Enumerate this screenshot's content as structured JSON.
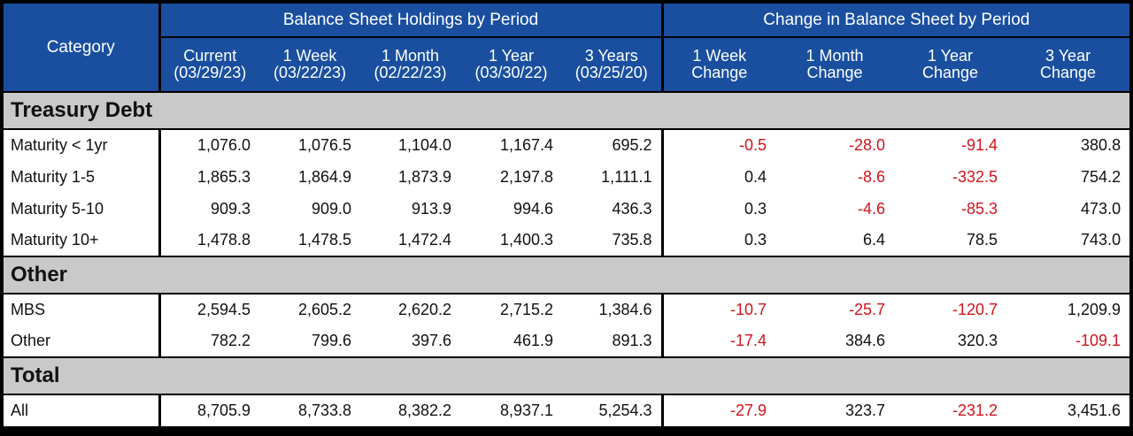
{
  "chart_data": {
    "type": "table",
    "group_headers": [
      "Balance Sheet Holdings by Period",
      "Change in Balance Sheet by Period"
    ],
    "category_header": "Category",
    "columns": [
      [
        "Current",
        "(03/29/23)"
      ],
      [
        "1 Week",
        "(03/22/23)"
      ],
      [
        "1 Month",
        "(02/22/23)"
      ],
      [
        "1 Year",
        "(03/30/22)"
      ],
      [
        "3 Years",
        "(03/25/20)"
      ],
      [
        "1 Week",
        "Change"
      ],
      [
        "1 Month",
        "Change"
      ],
      [
        "1 Year",
        "Change"
      ],
      [
        "3 Year",
        "Change"
      ]
    ],
    "sections": [
      {
        "name": "Treasury Debt",
        "rows": [
          {
            "label": "Maturity < 1yr",
            "values": [
              "1,076.0",
              "1,076.5",
              "1,104.0",
              "1,167.4",
              "695.2",
              "-0.5",
              "-28.0",
              "-91.4",
              "380.8"
            ]
          },
          {
            "label": "Maturity 1-5",
            "values": [
              "1,865.3",
              "1,864.9",
              "1,873.9",
              "2,197.8",
              "1,111.1",
              "0.4",
              "-8.6",
              "-332.5",
              "754.2"
            ]
          },
          {
            "label": "Maturity 5-10",
            "values": [
              "909.3",
              "909.0",
              "913.9",
              "994.6",
              "436.3",
              "0.3",
              "-4.6",
              "-85.3",
              "473.0"
            ]
          },
          {
            "label": "Maturity 10+",
            "values": [
              "1,478.8",
              "1,478.5",
              "1,472.4",
              "1,400.3",
              "735.8",
              "0.3",
              "6.4",
              "78.5",
              "743.0"
            ]
          }
        ]
      },
      {
        "name": "Other",
        "rows": [
          {
            "label": "MBS",
            "values": [
              "2,594.5",
              "2,605.2",
              "2,620.2",
              "2,715.2",
              "1,384.6",
              "-10.7",
              "-25.7",
              "-120.7",
              "1,209.9"
            ]
          },
          {
            "label": "Other",
            "values": [
              "782.2",
              "799.6",
              "397.6",
              "461.9",
              "891.3",
              "-17.4",
              "384.6",
              "320.3",
              "-109.1"
            ]
          }
        ]
      },
      {
        "name": "Total",
        "rows": [
          {
            "label": "All",
            "values": [
              "8,705.9",
              "8,733.8",
              "8,382.2",
              "8,937.1",
              "5,254.3",
              "-27.9",
              "323.7",
              "-231.2",
              "3,451.6"
            ]
          }
        ]
      }
    ],
    "colors": {
      "header_bg": "#1a4fa0",
      "header_text": "#ffffff",
      "section_bg": "#c9c9c9",
      "negative_text": "#d0141c"
    }
  }
}
